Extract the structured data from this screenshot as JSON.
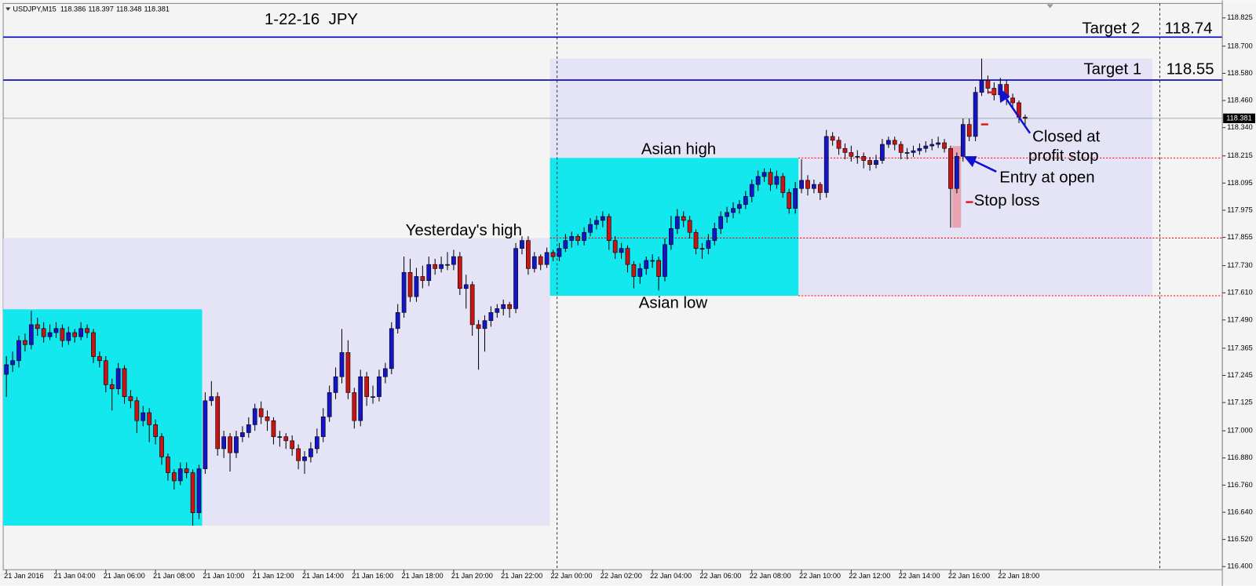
{
  "chart_data": {
    "type": "candlestick",
    "symbol": "USDJPY,M15",
    "title": "1-22-16  JPY",
    "ylim": [
      116.386,
      118.903
    ],
    "yticks": [
      118.825,
      {
        "value": 118.7,
        "label": "118.700"
      },
      {
        "value": 118.58,
        "label": "118.580"
      },
      {
        "value": 118.46,
        "label": "118.460"
      },
      {
        "value": 118.34,
        "label": "118.340"
      },
      118.215,
      118.095,
      117.975,
      117.855,
      {
        "value": 117.73,
        "label": "117.730"
      },
      {
        "value": 117.61,
        "label": "117.610"
      },
      {
        "value": 117.49,
        "label": "117.490"
      },
      117.365,
      117.245,
      117.125,
      {
        "value": 117,
        "label": "117.000"
      },
      {
        "value": 116.88,
        "label": "116.880"
      },
      {
        "value": 116.76,
        "label": "116.760"
      },
      {
        "value": 116.64,
        "label": "116.640"
      },
      {
        "value": 116.52,
        "label": "116.520"
      },
      {
        "value": 116.4,
        "label": "116.400"
      }
    ],
    "xticks": [
      {
        "value": 0,
        "label": "21 Jan 2016"
      },
      {
        "value": 8,
        "label": "21 Jan 04:00"
      },
      {
        "value": 16,
        "label": "21 Jan 06:00"
      },
      {
        "value": 24,
        "label": "21 Jan 08:00"
      },
      {
        "value": 32,
        "label": "21 Jan 10:00"
      },
      {
        "value": 40,
        "label": "21 Jan 12:00"
      },
      {
        "value": 48,
        "label": "21 Jan 14:00"
      },
      {
        "value": 56,
        "label": "21 Jan 16:00"
      },
      {
        "value": 64,
        "label": "21 Jan 18:00"
      },
      {
        "value": 72,
        "label": "21 Jan 20:00"
      },
      {
        "value": 80,
        "label": "21 Jan 22:00"
      },
      {
        "value": 88,
        "label": "22 Jan 00:00"
      },
      {
        "value": 96,
        "label": "22 Jan 02:00"
      },
      {
        "value": 104,
        "label": "22 Jan 04:00"
      },
      {
        "value": 112,
        "label": "22 Jan 06:00"
      },
      {
        "value": 120,
        "label": "22 Jan 08:00"
      },
      {
        "value": 128,
        "label": "22 Jan 10:00"
      },
      {
        "value": 136,
        "label": "22 Jan 12:00"
      },
      {
        "value": 144,
        "label": "22 Jan 14:00"
      },
      {
        "value": 152,
        "label": "22 Jan 16:00"
      },
      {
        "value": 160,
        "label": "22 Jan 18:00"
      }
    ],
    "bull_color": "#1414c8",
    "bear_color": "#c81414",
    "ohlc": [
      [
        117.25,
        117.33,
        117.15,
        117.292
      ],
      [
        117.292,
        117.35,
        117.26,
        117.31
      ],
      [
        117.31,
        117.42,
        117.28,
        117.399
      ],
      [
        117.399,
        117.43,
        117.35,
        117.381
      ],
      [
        117.381,
        117.53,
        117.36,
        117.469
      ],
      [
        117.469,
        117.5,
        117.42,
        117.452
      ],
      [
        117.452,
        117.48,
        117.39,
        117.416
      ],
      [
        117.416,
        117.47,
        117.4,
        117.434
      ],
      [
        117.434,
        117.48,
        117.41,
        117.452
      ],
      [
        117.452,
        117.47,
        117.37,
        117.399
      ],
      [
        117.399,
        117.46,
        117.38,
        117.434
      ],
      [
        117.434,
        117.45,
        117.39,
        117.416
      ],
      [
        117.416,
        117.48,
        117.4,
        117.452
      ],
      [
        117.452,
        117.47,
        117.41,
        117.434
      ],
      [
        117.434,
        117.45,
        117.3,
        117.328
      ],
      [
        117.328,
        117.35,
        117.28,
        117.31
      ],
      [
        117.31,
        117.33,
        117.17,
        117.204
      ],
      [
        117.204,
        117.23,
        117.09,
        117.186
      ],
      [
        117.186,
        117.3,
        117.16,
        117.275
      ],
      [
        117.275,
        117.29,
        117.12,
        117.151
      ],
      [
        117.151,
        117.18,
        117.1,
        117.133
      ],
      [
        117.133,
        117.15,
        116.99,
        117.045
      ],
      [
        117.045,
        117.11,
        117.02,
        117.08
      ],
      [
        117.08,
        117.1,
        116.95,
        117.027
      ],
      [
        117.027,
        117.05,
        116.94,
        116.974
      ],
      [
        116.974,
        116.99,
        116.85,
        116.885
      ],
      [
        116.885,
        116.9,
        116.78,
        116.815
      ],
      [
        116.815,
        116.83,
        116.74,
        116.779
      ],
      [
        116.779,
        116.86,
        116.76,
        116.832
      ],
      [
        116.832,
        116.86,
        116.79,
        116.815
      ],
      [
        116.815,
        116.83,
        116.581,
        116.638
      ],
      [
        116.638,
        116.85,
        116.61,
        116.832
      ],
      [
        116.832,
        117.17,
        116.81,
        117.133
      ],
      [
        117.133,
        117.22,
        117.11,
        117.151
      ],
      [
        117.151,
        117.17,
        116.89,
        116.921
      ],
      [
        116.921,
        117.0,
        116.88,
        116.974
      ],
      [
        116.974,
        116.99,
        116.82,
        116.903
      ],
      [
        116.903,
        117.0,
        116.88,
        116.974
      ],
      [
        116.974,
        117.02,
        116.95,
        116.992
      ],
      [
        116.992,
        117.06,
        116.97,
        117.027
      ],
      [
        117.027,
        117.12,
        117.0,
        117.098
      ],
      [
        117.098,
        117.13,
        117.03,
        117.062
      ],
      [
        117.062,
        117.09,
        117.0,
        117.045
      ],
      [
        117.045,
        117.06,
        116.94,
        116.974
      ],
      [
        116.974,
        117.0,
        116.93,
        116.974
      ],
      [
        116.974,
        116.99,
        116.92,
        116.956
      ],
      [
        116.956,
        116.98,
        116.89,
        116.921
      ],
      [
        116.921,
        116.94,
        116.83,
        116.868
      ],
      [
        116.868,
        116.91,
        116.81,
        116.885
      ],
      [
        116.885,
        116.95,
        116.86,
        116.921
      ],
      [
        116.921,
        117.01,
        116.9,
        116.974
      ],
      [
        116.974,
        117.1,
        116.95,
        117.062
      ],
      [
        117.062,
        117.2,
        117.04,
        117.169
      ],
      [
        117.169,
        117.28,
        117.14,
        117.239
      ],
      [
        117.239,
        117.45,
        117.21,
        117.346
      ],
      [
        117.346,
        117.4,
        117.14,
        117.169
      ],
      [
        117.169,
        117.19,
        117.01,
        117.045
      ],
      [
        117.045,
        117.27,
        117.02,
        117.239
      ],
      [
        117.239,
        117.26,
        117.11,
        117.151
      ],
      [
        117.151,
        117.2,
        117.12,
        117.151
      ],
      [
        117.151,
        117.27,
        117.13,
        117.239
      ],
      [
        117.239,
        117.3,
        117.21,
        117.275
      ],
      [
        117.275,
        117.48,
        117.25,
        117.452
      ],
      [
        117.452,
        117.56,
        117.43,
        117.523
      ],
      [
        117.523,
        117.77,
        117.5,
        117.7
      ],
      [
        117.7,
        117.76,
        117.57,
        117.593
      ],
      [
        117.593,
        117.72,
        117.57,
        117.682
      ],
      [
        117.682,
        117.73,
        117.63,
        117.664
      ],
      [
        117.664,
        117.77,
        117.64,
        117.735
      ],
      [
        117.735,
        117.76,
        117.69,
        117.717
      ],
      [
        117.717,
        117.77,
        117.7,
        117.735
      ],
      [
        117.735,
        117.79,
        117.71,
        117.735
      ],
      [
        117.735,
        117.8,
        117.71,
        117.77
      ],
      [
        117.77,
        117.79,
        117.6,
        117.629
      ],
      [
        117.629,
        117.69,
        117.54,
        117.646
      ],
      [
        117.646,
        117.66,
        117.42,
        117.469
      ],
      [
        117.469,
        117.49,
        117.27,
        117.452
      ],
      [
        117.452,
        117.51,
        117.35,
        117.487
      ],
      [
        117.487,
        117.55,
        117.46,
        117.523
      ],
      [
        117.523,
        117.56,
        117.5,
        117.54
      ],
      [
        117.54,
        117.58,
        117.51,
        117.558
      ],
      [
        117.558,
        117.57,
        117.5,
        117.54
      ],
      [
        117.54,
        117.83,
        117.52,
        117.806
      ],
      [
        117.806,
        117.86,
        117.78,
        117.841
      ],
      [
        117.841,
        117.86,
        117.69,
        117.717
      ],
      [
        117.717,
        117.79,
        117.7,
        117.77
      ],
      [
        117.77,
        117.78,
        117.71,
        117.735
      ],
      [
        117.735,
        117.81,
        117.72,
        117.788
      ],
      [
        117.788,
        117.8,
        117.75,
        117.77
      ],
      [
        117.77,
        117.83,
        117.75,
        117.806
      ],
      [
        117.806,
        117.87,
        117.79,
        117.841
      ],
      [
        117.841,
        117.88,
        117.81,
        117.859
      ],
      [
        117.859,
        117.87,
        117.82,
        117.841
      ],
      [
        117.841,
        117.9,
        117.82,
        117.877
      ],
      [
        117.877,
        117.94,
        117.86,
        117.912
      ],
      [
        117.912,
        117.95,
        117.89,
        117.93
      ],
      [
        117.93,
        117.97,
        117.9,
        117.947
      ],
      [
        117.947,
        117.96,
        117.8,
        117.841
      ],
      [
        117.841,
        117.86,
        117.76,
        117.788
      ],
      [
        117.788,
        117.83,
        117.76,
        117.806
      ],
      [
        117.806,
        117.82,
        117.7,
        117.735
      ],
      [
        117.735,
        117.75,
        117.63,
        117.682
      ],
      [
        117.682,
        117.74,
        117.65,
        117.717
      ],
      [
        117.717,
        117.77,
        117.69,
        117.753
      ],
      [
        117.753,
        117.78,
        117.72,
        117.753
      ],
      [
        117.753,
        117.77,
        117.62,
        117.682
      ],
      [
        117.682,
        117.85,
        117.66,
        117.823
      ],
      [
        117.823,
        117.95,
        117.8,
        117.894
      ],
      [
        117.894,
        117.98,
        117.87,
        117.947
      ],
      [
        117.947,
        117.97,
        117.9,
        117.93
      ],
      [
        117.93,
        117.95,
        117.85,
        117.877
      ],
      [
        117.877,
        117.89,
        117.78,
        117.806
      ],
      [
        117.806,
        117.83,
        117.76,
        117.806
      ],
      [
        117.806,
        117.87,
        117.78,
        117.841
      ],
      [
        117.841,
        117.92,
        117.82,
        117.894
      ],
      [
        117.894,
        117.97,
        117.87,
        117.947
      ],
      [
        117.947,
        117.99,
        117.92,
        117.965
      ],
      [
        117.965,
        118.01,
        117.94,
        117.983
      ],
      [
        117.983,
        118.02,
        117.96,
        118.0
      ],
      [
        118.0,
        118.06,
        117.98,
        118.036
      ],
      [
        118.036,
        118.11,
        118.01,
        118.089
      ],
      [
        118.089,
        118.15,
        118.06,
        118.124
      ],
      [
        118.124,
        118.16,
        118.1,
        118.142
      ],
      [
        118.142,
        118.16,
        118.06,
        118.089
      ],
      [
        118.089,
        118.15,
        118.07,
        118.124
      ],
      [
        118.124,
        118.14,
        118.03,
        118.053
      ],
      [
        118.053,
        118.07,
        117.96,
        117.983
      ],
      [
        117.983,
        118.1,
        117.96,
        118.071
      ],
      [
        118.071,
        118.2,
        118.05,
        118.107
      ],
      [
        118.107,
        118.13,
        118.04,
        118.071
      ],
      [
        118.071,
        118.11,
        118.05,
        118.089
      ],
      [
        118.089,
        118.1,
        118.02,
        118.053
      ],
      [
        118.053,
        118.33,
        118.03,
        118.301
      ],
      [
        118.301,
        118.32,
        118.26,
        118.284
      ],
      [
        118.284,
        118.3,
        118.22,
        118.248
      ],
      [
        118.248,
        118.27,
        118.2,
        118.23
      ],
      [
        118.23,
        118.26,
        118.19,
        118.213
      ],
      [
        118.213,
        118.24,
        118.18,
        118.213
      ],
      [
        118.213,
        118.23,
        118.16,
        118.195
      ],
      [
        118.195,
        118.21,
        118.15,
        118.177
      ],
      [
        118.177,
        118.22,
        118.16,
        118.195
      ],
      [
        118.195,
        118.29,
        118.18,
        118.266
      ],
      [
        118.266,
        118.3,
        118.25,
        118.284
      ],
      [
        118.284,
        118.3,
        118.24,
        118.266
      ],
      [
        118.266,
        118.28,
        118.2,
        118.23
      ],
      [
        118.23,
        118.25,
        118.2,
        118.23
      ],
      [
        118.23,
        118.26,
        118.21,
        118.238
      ],
      [
        118.238,
        118.27,
        118.22,
        118.248
      ],
      [
        118.248,
        118.28,
        118.23,
        118.259
      ],
      [
        118.259,
        118.29,
        118.24,
        118.266
      ],
      [
        118.266,
        118.3,
        118.25,
        118.273
      ],
      [
        118.273,
        118.29,
        118.23,
        118.248
      ],
      [
        118.248,
        118.26,
        117.898,
        118.071
      ],
      [
        118.071,
        118.23,
        118.05,
        118.213
      ],
      [
        118.213,
        118.38,
        118.19,
        118.354
      ],
      [
        118.354,
        118.38,
        118.28,
        118.301
      ],
      [
        118.301,
        118.52,
        118.28,
        118.496
      ],
      [
        118.496,
        118.645,
        118.48,
        118.549
      ],
      [
        118.549,
        118.57,
        118.49,
        118.514
      ],
      [
        118.514,
        118.54,
        118.46,
        118.485
      ],
      [
        118.485,
        118.56,
        118.47,
        118.531
      ],
      [
        118.531,
        118.55,
        118.44,
        118.471
      ],
      [
        118.471,
        118.49,
        118.42,
        118.45
      ],
      [
        118.45,
        118.46,
        118.36,
        118.386
      ],
      [
        118.386,
        118.397,
        118.348,
        118.381
      ]
    ],
    "zones": [
      {
        "start": 0,
        "end": 87,
        "low": 116.581,
        "high": 117.852,
        "color": "#e4e4f6"
      },
      {
        "start": 88,
        "end": 184,
        "low": 117.597,
        "high": 118.645,
        "color": "#e4e4f6"
      },
      {
        "start": 0,
        "end": 31,
        "low": 116.581,
        "high": 117.537,
        "color": "#12e8ee"
      },
      {
        "start": 88,
        "end": 127,
        "low": 117.597,
        "high": 118.206,
        "color": "#12e8ee"
      }
    ],
    "targets": [
      {
        "name": "Target 2",
        "value": 118.74
      },
      {
        "name": "Target 1",
        "value": 118.55
      }
    ],
    "target_color": "#0000c0",
    "levels": [
      {
        "value": 118.206,
        "start": 127
      },
      {
        "value": 117.852,
        "start": 87
      },
      {
        "value": 117.597,
        "start": 127
      }
    ],
    "level_color": "#ff0000",
    "annotations": [
      "Yesterday's high",
      "Asian high",
      "Asian low",
      "Closed at",
      "profit stop",
      "Entry at open",
      "Stop loss"
    ]
  }
}
